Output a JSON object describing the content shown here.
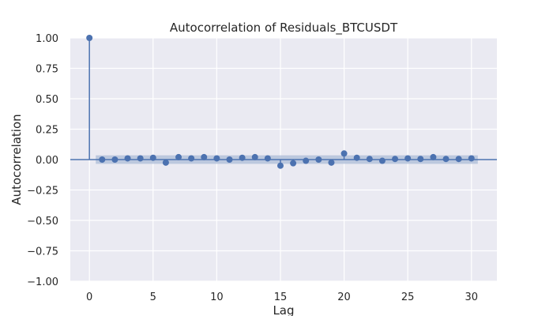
{
  "chart_data": {
    "type": "scatter",
    "subtype": "stem",
    "title": "Autocorrelation of Residuals_BTCUSDT",
    "xlabel": "Lag",
    "ylabel": "Autocorrelation",
    "xlim": [
      -1.5,
      32
    ],
    "ylim": [
      -1.0,
      1.0
    ],
    "grid": true,
    "colors": {
      "series": "#4c72b0",
      "band": "#b4c2db",
      "background": "#eaeaf2",
      "grid": "#ffffff",
      "text": "#262626"
    },
    "x_ticks": [
      {
        "value": 0,
        "label": "0"
      },
      {
        "value": 5,
        "label": "5"
      },
      {
        "value": 10,
        "label": "10"
      },
      {
        "value": 15,
        "label": "15"
      },
      {
        "value": 20,
        "label": "20"
      },
      {
        "value": 25,
        "label": "25"
      },
      {
        "value": 30,
        "label": "30"
      }
    ],
    "y_ticks": [
      {
        "value": 1.0,
        "label": "1.00"
      },
      {
        "value": 0.75,
        "label": "0.75"
      },
      {
        "value": 0.5,
        "label": "0.50"
      },
      {
        "value": 0.25,
        "label": "0.25"
      },
      {
        "value": 0.0,
        "label": "0.00"
      },
      {
        "value": -0.25,
        "label": "−0.25"
      },
      {
        "value": -0.5,
        "label": "−0.50"
      },
      {
        "value": -0.75,
        "label": "−0.75"
      },
      {
        "value": -1.0,
        "label": "−1.00"
      }
    ],
    "confidence_band": {
      "x_start": 0.5,
      "x_end": 30.5,
      "half_width": 0.035
    },
    "lags": [
      0,
      1,
      2,
      3,
      4,
      5,
      6,
      7,
      8,
      9,
      10,
      11,
      12,
      13,
      14,
      15,
      16,
      17,
      18,
      19,
      20,
      21,
      22,
      23,
      24,
      25,
      26,
      27,
      28,
      29,
      30
    ],
    "values": [
      1.0,
      0.0,
      0.0,
      0.01,
      0.01,
      0.015,
      -0.025,
      0.02,
      0.01,
      0.02,
      0.01,
      0.0,
      0.015,
      0.02,
      0.01,
      -0.05,
      -0.03,
      -0.01,
      0.0,
      -0.025,
      0.05,
      0.015,
      0.005,
      -0.01,
      0.005,
      0.01,
      0.005,
      0.02,
      0.005,
      0.005,
      0.01
    ]
  }
}
